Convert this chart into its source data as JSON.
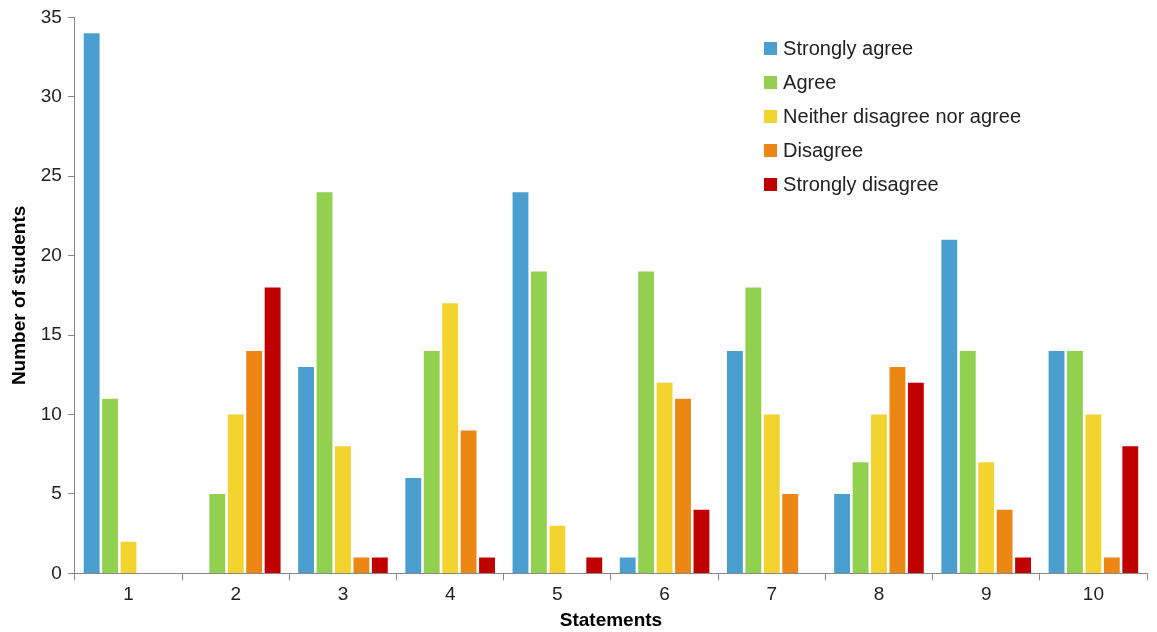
{
  "chart_data": {
    "type": "bar",
    "xlabel": "Statements",
    "ylabel": "Number of students",
    "categories": [
      "1",
      "2",
      "3",
      "4",
      "5",
      "6",
      "7",
      "8",
      "9",
      "10"
    ],
    "series": [
      {
        "name": "Strongly agree",
        "color": "#4a9fd0",
        "values": [
          34,
          0,
          13,
          6,
          24,
          1,
          14,
          5,
          21,
          14
        ]
      },
      {
        "name": "Agree",
        "color": "#92d050",
        "values": [
          11,
          5,
          24,
          14,
          19,
          19,
          18,
          7,
          14,
          14
        ]
      },
      {
        "name": "Neither disagree nor agree",
        "color": "#f3d32e",
        "values": [
          2,
          10,
          8,
          17,
          3,
          12,
          10,
          10,
          7,
          10
        ]
      },
      {
        "name": "Disagree",
        "color": "#ec8714",
        "values": [
          0,
          14,
          1,
          9,
          0,
          11,
          5,
          13,
          4,
          1
        ]
      },
      {
        "name": "Strongly disagree",
        "color": "#c00000",
        "values": [
          0,
          18,
          1,
          1,
          1,
          4,
          0,
          12,
          1,
          8
        ]
      }
    ],
    "ylim": [
      0,
      35
    ],
    "yticks": [
      0,
      5,
      10,
      15,
      20,
      25,
      30,
      35
    ],
    "legend": "top right"
  }
}
